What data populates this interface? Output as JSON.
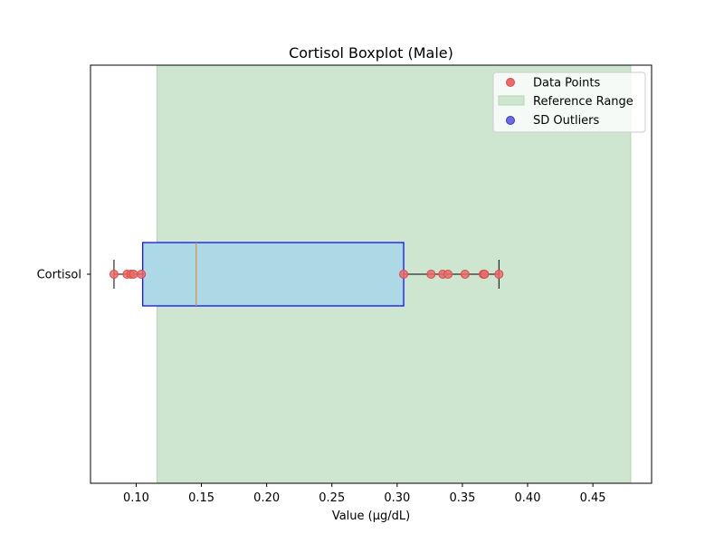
{
  "chart_data": {
    "type": "boxplot",
    "title": "Cortisol Boxplot (Male)",
    "xlabel": "Value (μg/dL)",
    "ylabel": "",
    "xlim": [
      0.065,
      0.495
    ],
    "xticks": [
      0.1,
      0.15,
      0.2,
      0.25,
      0.3,
      0.35,
      0.4,
      0.45
    ],
    "xtick_labels": [
      "0.10",
      "0.15",
      "0.20",
      "0.25",
      "0.30",
      "0.35",
      "0.40",
      "0.45"
    ],
    "category": "Cortisol",
    "box": {
      "whisker_low": 0.083,
      "q1": 0.105,
      "median": 0.146,
      "q3": 0.305,
      "whisker_high": 0.378
    },
    "reference_range": [
      0.116,
      0.479
    ],
    "data_points": [
      0.083,
      0.093,
      0.096,
      0.098,
      0.104,
      0.305,
      0.326,
      0.335,
      0.339,
      0.352,
      0.366,
      0.367,
      0.378
    ],
    "sd_outliers": [],
    "legend": {
      "data_points": "Data Points",
      "reference_range": "Reference Range",
      "sd_outliers": "SD Outliers"
    },
    "colors": {
      "reference_fill": "#cee5cf",
      "reference_edge": "#b3d6b4",
      "box_fill": "#add8e6",
      "box_edge": "#0000ff",
      "median": "#e08a3c",
      "whisker": "#000000",
      "data_point": "#e86c6c",
      "data_point_edge": "#d94a4a",
      "sd_outlier": "#6b6bde",
      "sd_outlier_edge": "#3a3ab8"
    }
  }
}
